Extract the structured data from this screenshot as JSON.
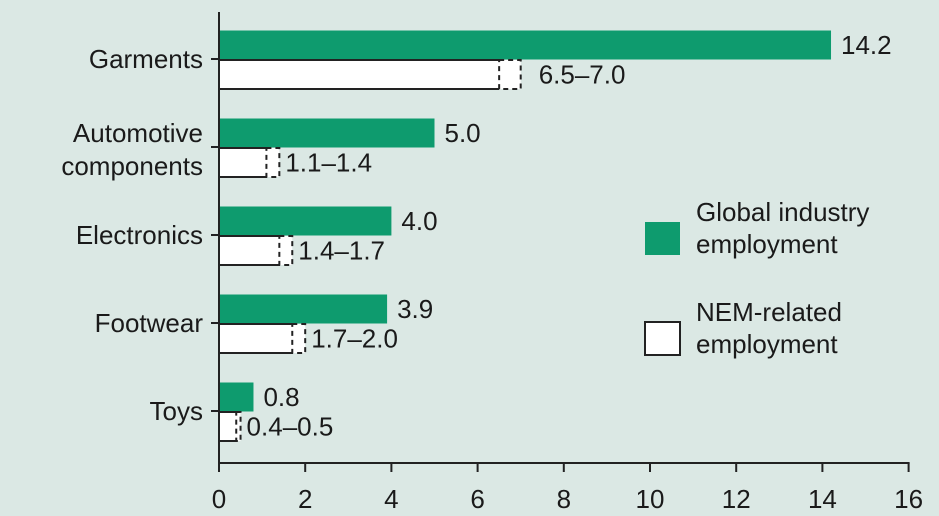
{
  "chart_data": {
    "type": "bar",
    "orientation": "horizontal",
    "title": "",
    "xlabel": "",
    "ylabel": "",
    "xlim": [
      0,
      16
    ],
    "x_ticks": [
      "0",
      "2",
      "4",
      "6",
      "8",
      "10",
      "12",
      "14",
      "16"
    ],
    "grid": false,
    "legend_placement": "right",
    "categories": [
      [
        "Garments"
      ],
      [
        "Automotive",
        "components"
      ],
      [
        "Electronics"
      ],
      [
        "Footwear"
      ],
      [
        "Toys"
      ]
    ],
    "series": [
      {
        "name": [
          "Global industry",
          "employment"
        ],
        "color": "#0e9b6e",
        "values": [
          14.2,
          5.0,
          4.0,
          3.9,
          0.8
        ],
        "labels": [
          "14.2",
          "5.0",
          "4.0",
          "3.9",
          "0.8"
        ]
      },
      {
        "name": [
          "NEM-related",
          "employment"
        ],
        "color": "#ffffff",
        "ranges": [
          [
            6.5,
            7.0
          ],
          [
            1.1,
            1.4
          ],
          [
            1.4,
            1.7
          ],
          [
            1.7,
            2.0
          ],
          [
            0.4,
            0.5
          ]
        ],
        "labels": [
          "6.5–7.0",
          "1.1–1.4",
          "1.4–1.7",
          "1.7–2.0",
          "0.4–0.5"
        ]
      }
    ]
  },
  "colors": {
    "background": "#dbe8e4",
    "green": "#0e9b6e",
    "axis": "#222222"
  }
}
